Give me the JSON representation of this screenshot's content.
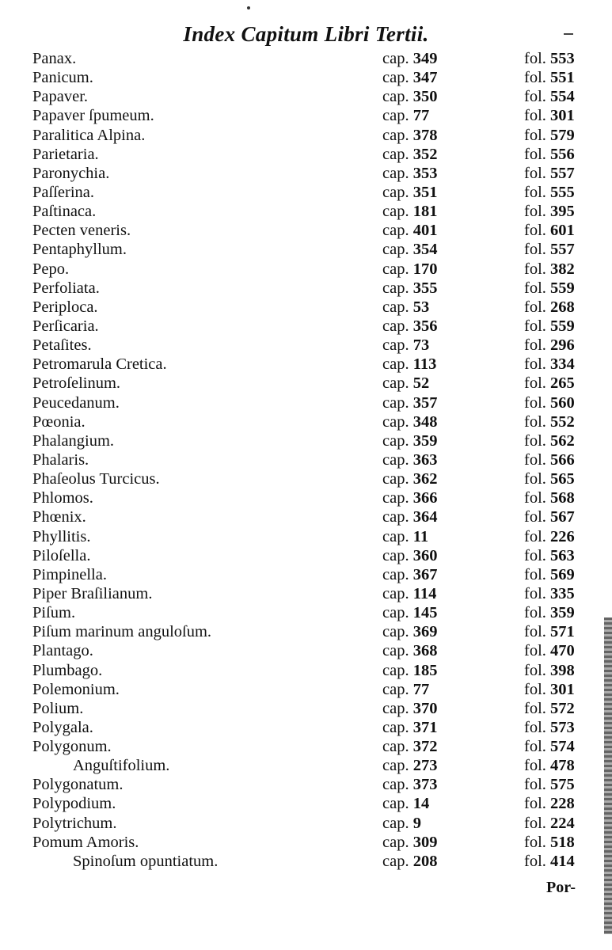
{
  "header": {
    "title": "Index Capitum Libri Tertii."
  },
  "entries": [
    {
      "name": "Panax.",
      "cap": "349",
      "fol": "553"
    },
    {
      "name": "Panicum.",
      "cap": "347",
      "fol": "551"
    },
    {
      "name": "Papaver.",
      "cap": "350",
      "fol": "554"
    },
    {
      "name": "Papaver ſpumeum.",
      "cap": "77",
      "fol": "301"
    },
    {
      "name": "Paralitica Alpina.",
      "cap": "378",
      "fol": "579"
    },
    {
      "name": "Parietaria.",
      "cap": "352",
      "fol": "556"
    },
    {
      "name": "Paronychia.",
      "cap": "353",
      "fol": "557"
    },
    {
      "name": "Paſſerina.",
      "cap": "351",
      "fol": "555"
    },
    {
      "name": "Paſtinaca.",
      "cap": "181",
      "fol": "395"
    },
    {
      "name": "Pecten veneris.",
      "cap": "401",
      "fol": "601"
    },
    {
      "name": "Pentaphyllum.",
      "cap": "354",
      "fol": "557"
    },
    {
      "name": "Pepo.",
      "cap": "170",
      "fol": "382"
    },
    {
      "name": "Perfoliata.",
      "cap": "355",
      "fol": "559"
    },
    {
      "name": "Periploca.",
      "cap": "53",
      "fol": "268"
    },
    {
      "name": "Perſicaria.",
      "cap": "356",
      "fol": "559"
    },
    {
      "name": "Petaſites.",
      "cap": "73",
      "fol": "296"
    },
    {
      "name": "Petromarula Cretica.",
      "cap": "113",
      "fol": "334"
    },
    {
      "name": "Petroſelinum.",
      "cap": "52",
      "fol": "265"
    },
    {
      "name": "Peucedanum.",
      "cap": "357",
      "fol": "560"
    },
    {
      "name": "Pœonia.",
      "cap": "348",
      "fol": "552"
    },
    {
      "name": "Phalangium.",
      "cap": "359",
      "fol": "562"
    },
    {
      "name": "Phalaris.",
      "cap": "363",
      "fol": "566"
    },
    {
      "name": "Phaſeolus Turcicus.",
      "cap": "362",
      "fol": "565"
    },
    {
      "name": "Phlomos.",
      "cap": "366",
      "fol": "568"
    },
    {
      "name": "Phœnix.",
      "cap": "364",
      "fol": "567"
    },
    {
      "name": "Phyllitis.",
      "cap": "11",
      "fol": "226"
    },
    {
      "name": "Piloſella.",
      "cap": "360",
      "fol": "563"
    },
    {
      "name": "Pimpinella.",
      "cap": "367",
      "fol": "569"
    },
    {
      "name": "Piper Braſilianum.",
      "cap": "114",
      "fol": "335"
    },
    {
      "name": "Piſum.",
      "cap": "145",
      "fol": "359"
    },
    {
      "name": "Piſum marinum anguloſum.",
      "cap": "369",
      "fol": "571"
    },
    {
      "name": "Plantago.",
      "cap": "368",
      "fol": "470"
    },
    {
      "name": "Plumbago.",
      "cap": "185",
      "fol": "398"
    },
    {
      "name": "Polemonium.",
      "cap": "77",
      "fol": "301"
    },
    {
      "name": "Polium.",
      "cap": "370",
      "fol": "572"
    },
    {
      "name": "Polygala.",
      "cap": "371",
      "fol": "573"
    },
    {
      "name": "Polygonum.",
      "cap": "372",
      "fol": "574"
    },
    {
      "name": "Anguſtifolium.",
      "cap": "273",
      "fol": "478",
      "indent": true
    },
    {
      "name": "Polygonatum.",
      "cap": "373",
      "fol": "575"
    },
    {
      "name": "Polypodium.",
      "cap": "14",
      "fol": "228"
    },
    {
      "name": "Polytrichum.",
      "cap": "9",
      "fol": "224"
    },
    {
      "name": "Pomum Amoris.",
      "cap": "309",
      "fol": "518"
    },
    {
      "name": "Spinoſum opuntiatum.",
      "cap": "208",
      "fol": "414",
      "indent": true
    }
  ],
  "labels": {
    "cap": "cap.",
    "fol": "fol."
  },
  "footer": {
    "catchword": "Por-"
  }
}
